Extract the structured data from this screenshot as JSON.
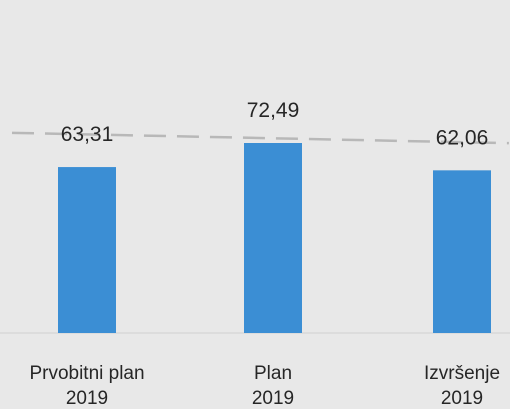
{
  "chart_data": {
    "type": "bar",
    "categories": [
      [
        "Prvobitni plan",
        "2019"
      ],
      [
        "Plan",
        "2019"
      ],
      [
        "Izvršenje",
        "2019"
      ]
    ],
    "values": [
      63.31,
      72.49,
      62.06
    ],
    "value_labels": [
      "63,31",
      "72,49",
      "62,06"
    ],
    "ylim": [
      0,
      85
    ],
    "bar_color": "#3b8ed4",
    "trendline": {
      "style": "dashed",
      "color": "#b8b8b8"
    },
    "grid": false,
    "legend": "none"
  }
}
